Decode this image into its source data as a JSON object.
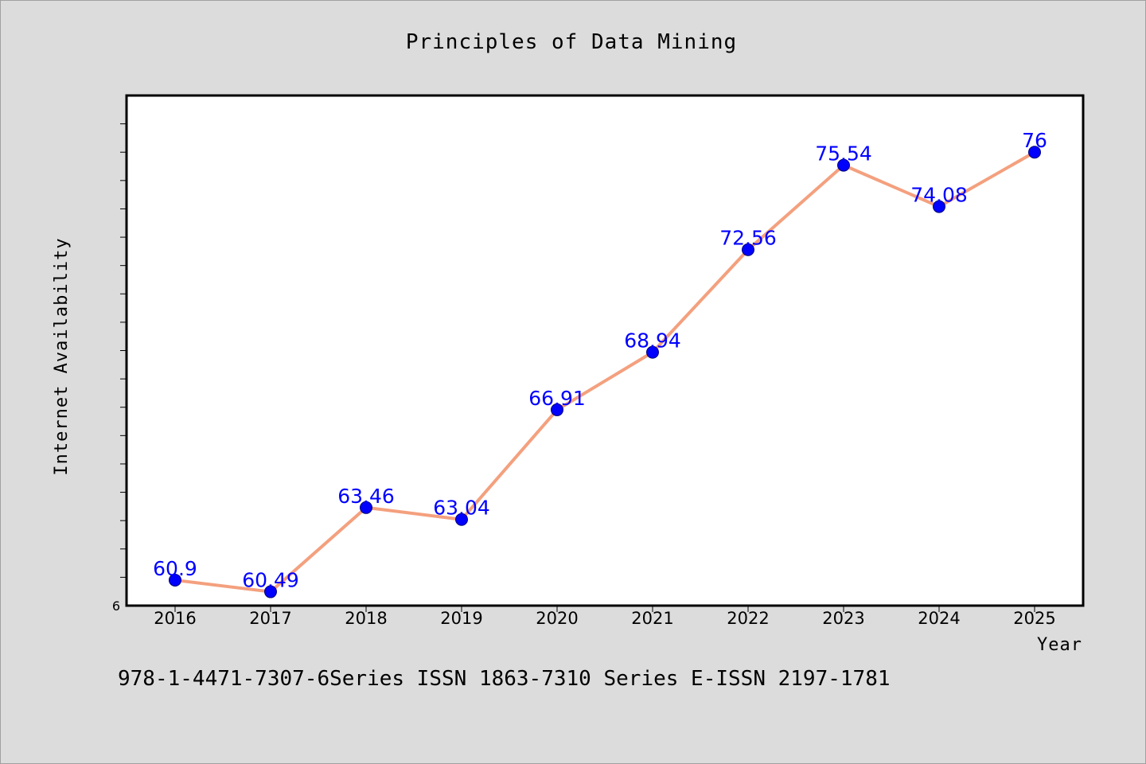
{
  "footer": "978-1-4471-7307-6Series ISSN 1863-7310 Series E-ISSN 2197-1781",
  "colors": {
    "background": "#dcdcdc",
    "plot_background": "#ffffff",
    "line": "#f4a07e",
    "marker": "#0000ff",
    "data_label": "#0000ff"
  },
  "chart_data": {
    "type": "line",
    "title": "Principles of Data Mining",
    "xlabel": "Year",
    "ylabel": "Internet Availability",
    "categories": [
      "2016",
      "2017",
      "2018",
      "2019",
      "2020",
      "2021",
      "2022",
      "2023",
      "2024",
      "2025"
    ],
    "values": [
      60.9,
      60.49,
      63.46,
      63.04,
      66.91,
      68.94,
      72.56,
      75.54,
      74.08,
      76
    ],
    "value_labels": [
      "60.9",
      "60.49",
      "63.46",
      "63.04",
      "66.91",
      "68.94",
      "72.56",
      "75.54",
      "74.08",
      "76"
    ],
    "ylim": [
      60,
      78
    ],
    "y_tick_labels": [
      "6"
    ],
    "grid": false,
    "legend": "none"
  }
}
